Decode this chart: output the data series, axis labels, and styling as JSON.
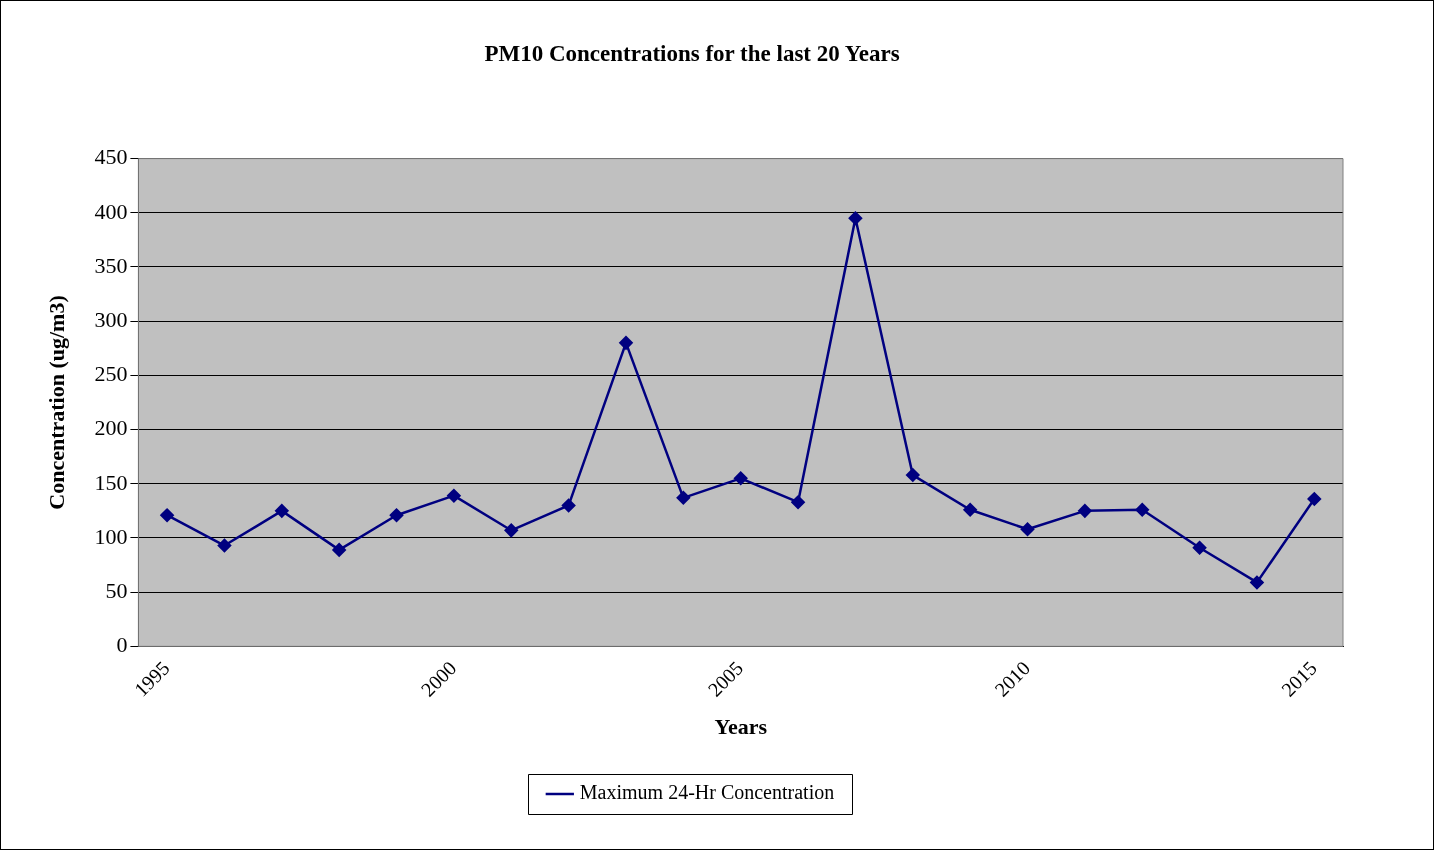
{
  "chart_data": {
    "type": "line",
    "title": "PM10 Concentrations for the last 20 Years",
    "xlabel": "Years",
    "ylabel": "Concentration (ug/m3)",
    "categories": [
      "1995",
      null,
      null,
      null,
      null,
      "2000",
      null,
      null,
      null,
      null,
      "2005",
      null,
      null,
      null,
      null,
      "2010",
      null,
      null,
      null,
      null,
      "2015"
    ],
    "series": [
      {
        "name": "Maximum 24-Hr Concentration",
        "color": "#000080",
        "values": [
          121,
          93,
          125,
          89,
          121,
          139,
          107,
          130,
          280,
          137,
          155,
          133,
          395,
          158,
          126,
          108,
          125,
          126,
          91,
          59,
          136
        ]
      }
    ],
    "ylim": [
      0,
      450
    ],
    "yticks": [
      0,
      50,
      100,
      150,
      200,
      250,
      300,
      350,
      400,
      450
    ],
    "grid": "y",
    "legend": "bottom",
    "marker": "diamond",
    "line_style": "solid"
  }
}
